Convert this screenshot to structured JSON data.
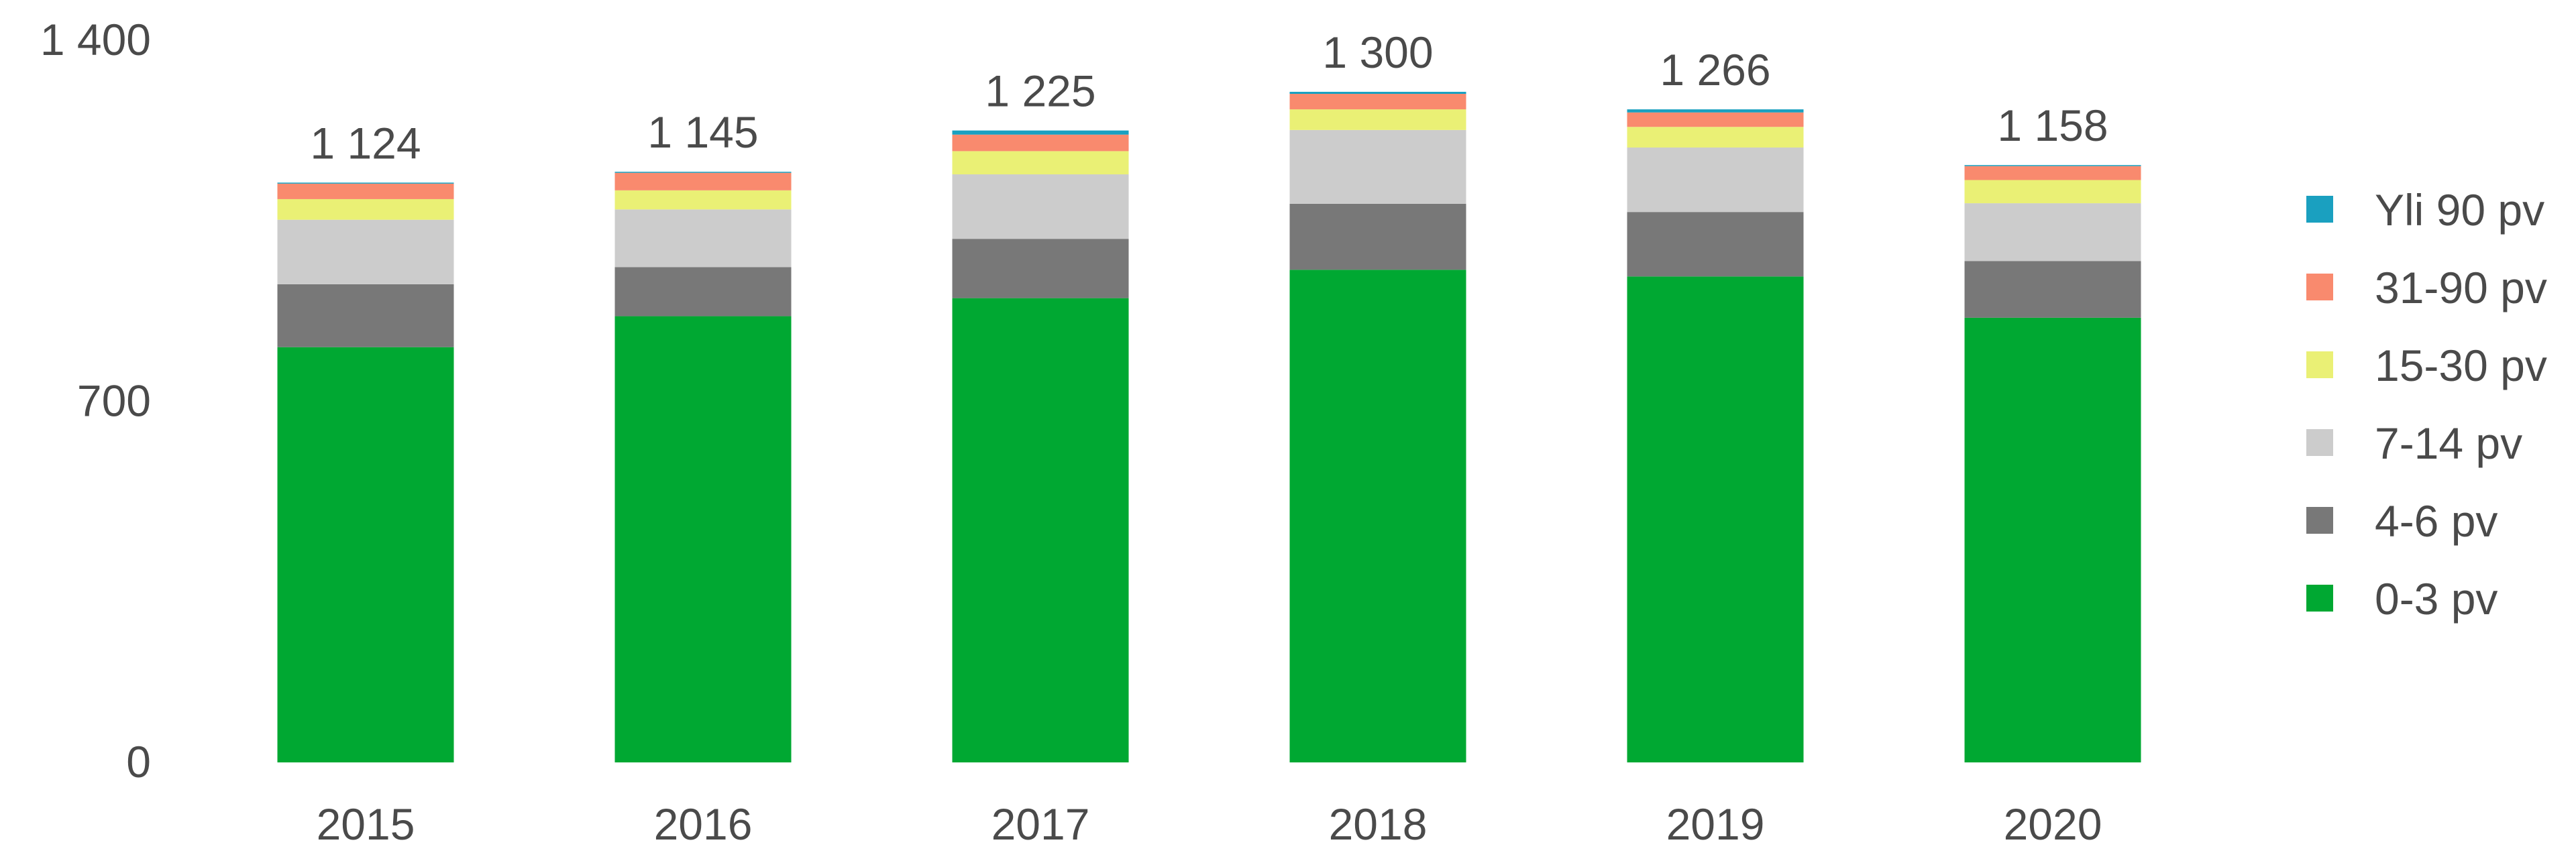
{
  "chart_data": {
    "type": "bar",
    "stacked": true,
    "title": "",
    "xlabel": "",
    "ylabel": "",
    "ylim": [
      0,
      1400
    ],
    "y_ticks": [
      {
        "value": 0,
        "label": "0"
      },
      {
        "value": 700,
        "label": "700"
      },
      {
        "value": 1400,
        "label": "1 400"
      }
    ],
    "grid": false,
    "legend_position": "right",
    "categories": [
      "2015",
      "2016",
      "2017",
      "2018",
      "2019",
      "2020"
    ],
    "totals": [
      "1 124",
      "1 145",
      "1 225",
      "1 300",
      "1 266",
      "1 158"
    ],
    "total_values": [
      1124,
      1145,
      1225,
      1300,
      1266,
      1158
    ],
    "series": [
      {
        "name": "0-3 pv",
        "color": "#00a832",
        "values": [
          805,
          865,
          900,
          955,
          942,
          862
        ]
      },
      {
        "name": "4-6 pv",
        "color": "#787878",
        "values": [
          122,
          95,
          115,
          128,
          125,
          110
        ]
      },
      {
        "name": "7-14 pv",
        "color": "#cccccc",
        "values": [
          125,
          112,
          125,
          143,
          125,
          112
        ]
      },
      {
        "name": "15-30 pv",
        "color": "#eaf075",
        "values": [
          40,
          37,
          45,
          40,
          40,
          45
        ]
      },
      {
        "name": "31-90 pv",
        "color": "#f98a6e",
        "values": [
          30,
          34,
          32,
          30,
          28,
          27
        ]
      },
      {
        "name": "Yli 90 pv",
        "color": "#1aa0c0",
        "values": [
          2,
          2,
          8,
          4,
          6,
          2
        ]
      }
    ],
    "legend_order": [
      "Yli 90 pv",
      "31-90 pv",
      "15-30 pv",
      "7-14 pv",
      "4-6 pv",
      "0-3 pv"
    ]
  }
}
